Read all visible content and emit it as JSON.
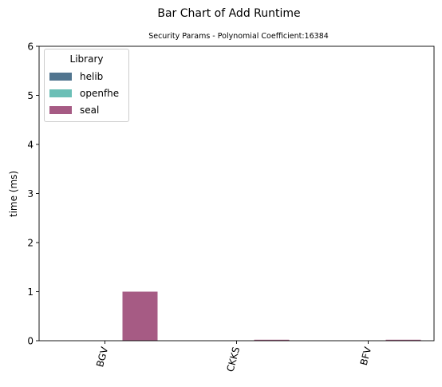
{
  "chart_data": {
    "type": "bar",
    "title": "Bar Chart of Add Runtime",
    "subtitle": "Security Params - Polynomial Coefficient:16384",
    "xlabel": "",
    "ylabel": "time (ms)",
    "ylim": [
      0,
      6
    ],
    "yticks": [
      "0",
      "1",
      "2",
      "3",
      "4",
      "5",
      "6"
    ],
    "categories": [
      "BGV",
      "CKKS",
      "BFV"
    ],
    "series": [
      {
        "name": "helib",
        "color": "#51758f",
        "values": [
          0,
          0,
          0
        ]
      },
      {
        "name": "openfhe",
        "color": "#6bbfb6",
        "values": [
          0,
          0,
          0
        ]
      },
      {
        "name": "seal",
        "color": "#a65b84",
        "values": [
          1.0,
          0.02,
          0.02
        ]
      }
    ],
    "legend": {
      "title": "Library",
      "placement": "top-left"
    },
    "grid": false
  }
}
